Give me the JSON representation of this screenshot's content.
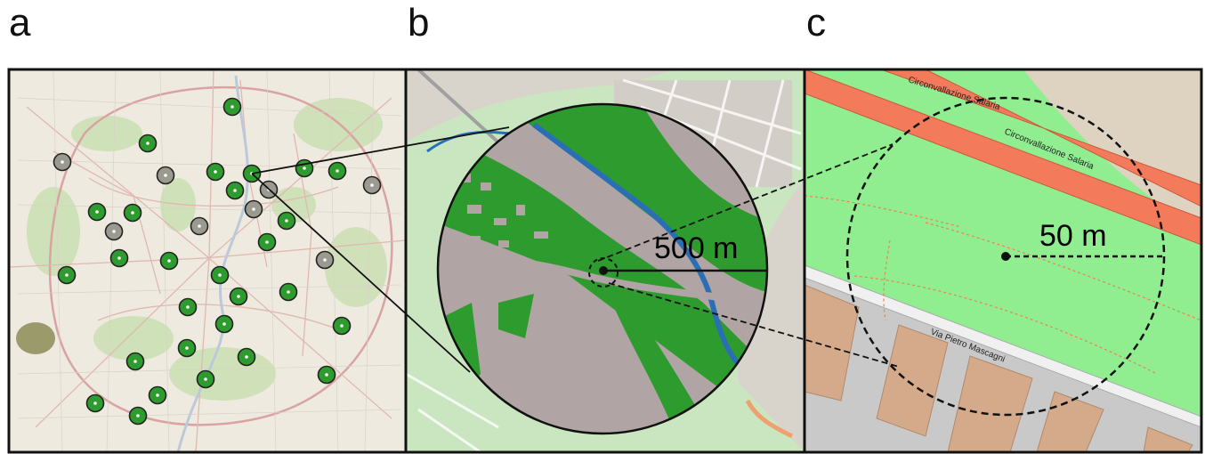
{
  "panels": [
    {
      "letter": "a"
    },
    {
      "letter": "b"
    },
    {
      "letter": "c"
    }
  ],
  "panel_b": {
    "scale_label": "500 m"
  },
  "panel_c": {
    "scale_label": "50 m",
    "streets": [
      "Circonvallazione Salaria",
      "Circonvallazione Salaria",
      "Via Pietro Mascagni"
    ]
  },
  "colors": {
    "map_background": "#eeeae0",
    "green_space": "#2e9b2e",
    "built_area": "#b0a4a4",
    "river": "#2a6fb5",
    "park_light": "#a8e8a0",
    "road_major": "#f37a5a",
    "building": "#d4aa8a"
  }
}
